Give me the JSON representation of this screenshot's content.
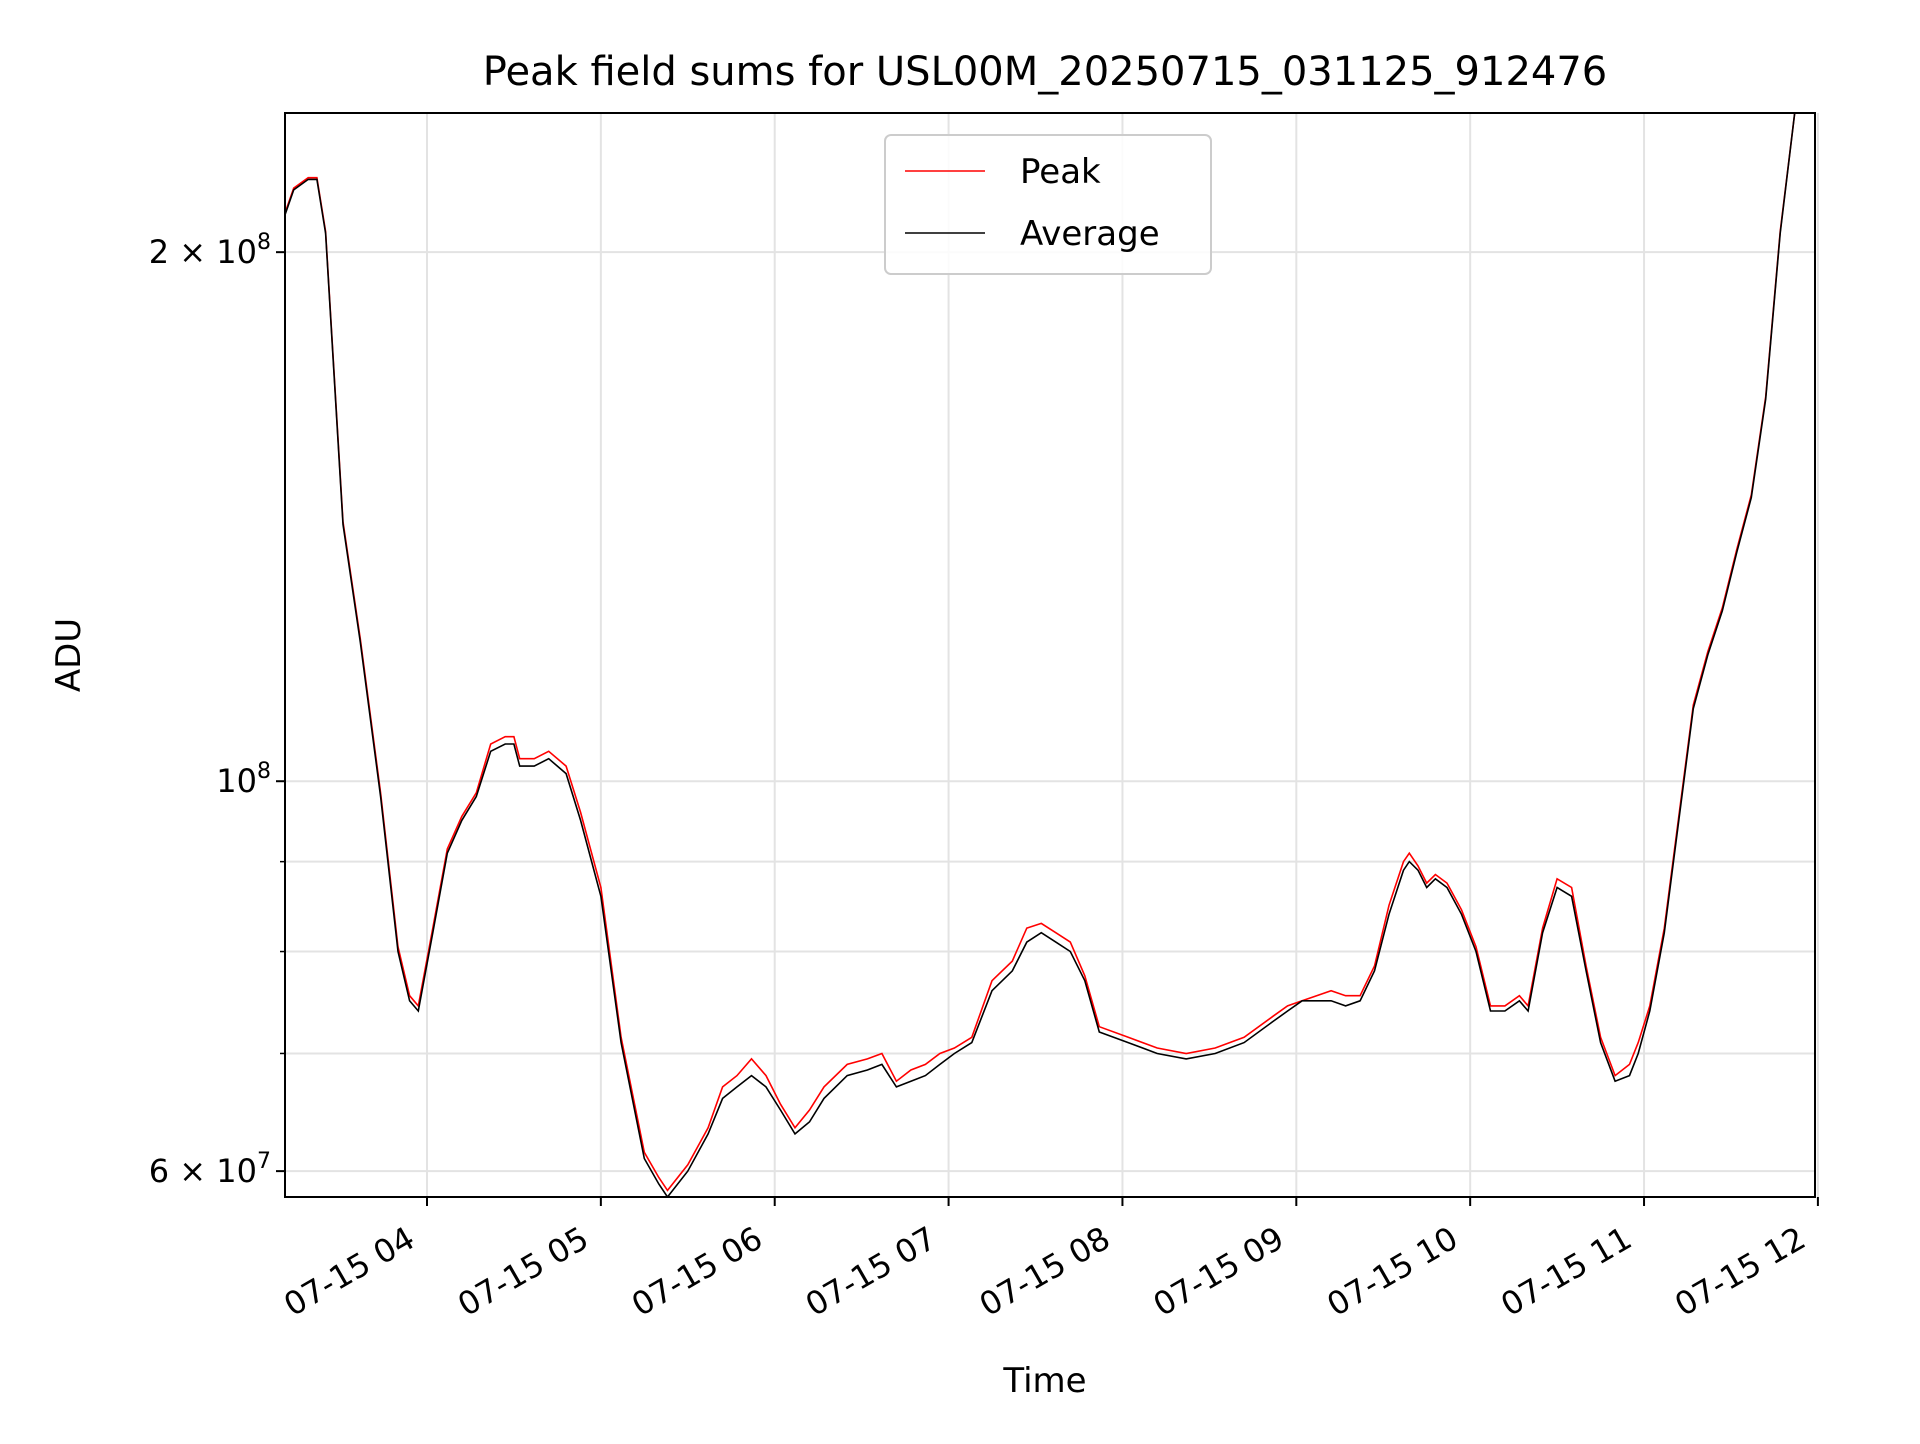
{
  "chart_data": {
    "type": "line",
    "title": "Peak field sums for USL00M_20250715_031125_912476",
    "xlabel": "Time",
    "ylabel": "ADU",
    "y_scale": "log",
    "ylim": [
      58000000,
      240000000
    ],
    "xlim": [
      "2025-07-15 03:11",
      "2025-07-15 11:59"
    ],
    "grid": true,
    "legend_position": "top-center",
    "x_ticks": [
      {
        "t": "2025-07-15 04:00",
        "label": "07-15 04"
      },
      {
        "t": "2025-07-15 05:00",
        "label": "07-15 05"
      },
      {
        "t": "2025-07-15 06:00",
        "label": "07-15 06"
      },
      {
        "t": "2025-07-15 07:00",
        "label": "07-15 07"
      },
      {
        "t": "2025-07-15 08:00",
        "label": "07-15 08"
      },
      {
        "t": "2025-07-15 09:00",
        "label": "07-15 09"
      },
      {
        "t": "2025-07-15 10:00",
        "label": "07-15 10"
      },
      {
        "t": "2025-07-15 11:00",
        "label": "07-15 11"
      },
      {
        "t": "2025-07-15 12:00",
        "label": "07-15 12"
      }
    ],
    "y_ticks": [
      {
        "value": 60000000,
        "label": "6 × 10",
        "exp": "7"
      },
      {
        "value": 100000000,
        "label": "10",
        "exp": "8"
      },
      {
        "value": 200000000,
        "label": "2 × 10",
        "exp": "8"
      }
    ],
    "y_minor_ticks": [
      70000000,
      80000000,
      90000000
    ],
    "series": [
      {
        "name": "Peak",
        "color": "#ff0000"
      },
      {
        "name": "Average",
        "color": "#000000"
      }
    ],
    "x": [
      "2025-07-15 03:11",
      "2025-07-15 03:14",
      "2025-07-15 03:19",
      "2025-07-15 03:22",
      "2025-07-15 03:25",
      "2025-07-15 03:31",
      "2025-07-15 03:37",
      "2025-07-15 03:44",
      "2025-07-15 03:50",
      "2025-07-15 03:54",
      "2025-07-15 03:57",
      "2025-07-15 04:02",
      "2025-07-15 04:07",
      "2025-07-15 04:12",
      "2025-07-15 04:17",
      "2025-07-15 04:22",
      "2025-07-15 04:27",
      "2025-07-15 04:30",
      "2025-07-15 04:32",
      "2025-07-15 04:37",
      "2025-07-15 04:42",
      "2025-07-15 04:48",
      "2025-07-15 04:53",
      "2025-07-15 05:00",
      "2025-07-15 05:07",
      "2025-07-15 05:15",
      "2025-07-15 05:20",
      "2025-07-15 05:23",
      "2025-07-15 05:30",
      "2025-07-15 05:37",
      "2025-07-15 05:42",
      "2025-07-15 05:47",
      "2025-07-15 05:52",
      "2025-07-15 05:57",
      "2025-07-15 06:02",
      "2025-07-15 06:07",
      "2025-07-15 06:12",
      "2025-07-15 06:17",
      "2025-07-15 06:25",
      "2025-07-15 06:32",
      "2025-07-15 06:37",
      "2025-07-15 06:42",
      "2025-07-15 06:47",
      "2025-07-15 06:52",
      "2025-07-15 06:57",
      "2025-07-15 07:02",
      "2025-07-15 07:08",
      "2025-07-15 07:15",
      "2025-07-15 07:22",
      "2025-07-15 07:27",
      "2025-07-15 07:32",
      "2025-07-15 07:37",
      "2025-07-15 07:42",
      "2025-07-15 07:47",
      "2025-07-15 07:52",
      "2025-07-15 08:02",
      "2025-07-15 08:12",
      "2025-07-15 08:22",
      "2025-07-15 08:32",
      "2025-07-15 08:42",
      "2025-07-15 08:52",
      "2025-07-15 08:57",
      "2025-07-15 09:02",
      "2025-07-15 09:07",
      "2025-07-15 09:12",
      "2025-07-15 09:17",
      "2025-07-15 09:22",
      "2025-07-15 09:27",
      "2025-07-15 09:32",
      "2025-07-15 09:37",
      "2025-07-15 09:39",
      "2025-07-15 09:42",
      "2025-07-15 09:45",
      "2025-07-15 09:48",
      "2025-07-15 09:52",
      "2025-07-15 09:57",
      "2025-07-15 10:02",
      "2025-07-15 10:07",
      "2025-07-15 10:12",
      "2025-07-15 10:17",
      "2025-07-15 10:20",
      "2025-07-15 10:25",
      "2025-07-15 10:30",
      "2025-07-15 10:35",
      "2025-07-15 10:40",
      "2025-07-15 10:45",
      "2025-07-15 10:50",
      "2025-07-15 10:55",
      "2025-07-15 10:58",
      "2025-07-15 11:02",
      "2025-07-15 11:07",
      "2025-07-15 11:12",
      "2025-07-15 11:17",
      "2025-07-15 11:22",
      "2025-07-15 11:27",
      "2025-07-15 11:32",
      "2025-07-15 11:37",
      "2025-07-15 11:42",
      "2025-07-15 11:47",
      "2025-07-15 11:52",
      "2025-07-15 11:59"
    ],
    "average": [
      210000000,
      217000000,
      220000000,
      220000000,
      205000000,
      140000000,
      120000000,
      98000000,
      80000000,
      75000000,
      74000000,
      82000000,
      91000000,
      95000000,
      98000000,
      104000000,
      105000000,
      105000000,
      102000000,
      102000000,
      103000000,
      101000000,
      95000000,
      86000000,
      71000000,
      61000000,
      59000000,
      58000000,
      60000000,
      63000000,
      66000000,
      67000000,
      68000000,
      67000000,
      65000000,
      63000000,
      64000000,
      66000000,
      68000000,
      68500000,
      69000000,
      67000000,
      67500000,
      68000000,
      69000000,
      70000000,
      71000000,
      76000000,
      78000000,
      81000000,
      82000000,
      81000000,
      80000000,
      77000000,
      72000000,
      71000000,
      70000000,
      69500000,
      70000000,
      71000000,
      73000000,
      74000000,
      75000000,
      75000000,
      75000000,
      74500000,
      75000000,
      78000000,
      84000000,
      89000000,
      90000000,
      89000000,
      87000000,
      88000000,
      87000000,
      84000000,
      80000000,
      74000000,
      74000000,
      75000000,
      74000000,
      82000000,
      87000000,
      86000000,
      78000000,
      71000000,
      67500000,
      68000000,
      70000000,
      74000000,
      82000000,
      95000000,
      110000000,
      118000000,
      125000000,
      135000000,
      145000000,
      165000000,
      205000000,
      240000000,
      240000000
    ],
    "peak": [
      210500000,
      217500000,
      220500000,
      220500000,
      205500000,
      140500000,
      120500000,
      98500000,
      80500000,
      75500000,
      74500000,
      82500000,
      91500000,
      95500000,
      98500000,
      105000000,
      106000000,
      106000000,
      103000000,
      103000000,
      104000000,
      102000000,
      96000000,
      87000000,
      71500000,
      61500000,
      59500000,
      58500000,
      60500000,
      63500000,
      67000000,
      68000000,
      69500000,
      68000000,
      65500000,
      63500000,
      65000000,
      67000000,
      69000000,
      69500000,
      70000000,
      67500000,
      68500000,
      69000000,
      70000000,
      70500000,
      71500000,
      77000000,
      79000000,
      82500000,
      83000000,
      82000000,
      81000000,
      77500000,
      72500000,
      71500000,
      70500000,
      70000000,
      70500000,
      71500000,
      73500000,
      74500000,
      75000000,
      75500000,
      76000000,
      75500000,
      75500000,
      78500000,
      85000000,
      90000000,
      91000000,
      89500000,
      87500000,
      88500000,
      87500000,
      84500000,
      80500000,
      74500000,
      74500000,
      75500000,
      74500000,
      82500000,
      88000000,
      87000000,
      78500000,
      71500000,
      68000000,
      69000000,
      71000000,
      74500000,
      82500000,
      95500000,
      110500000,
      118500000,
      125500000,
      135500000,
      145500000,
      165500000,
      205500000,
      240000000,
      240000000
    ]
  }
}
